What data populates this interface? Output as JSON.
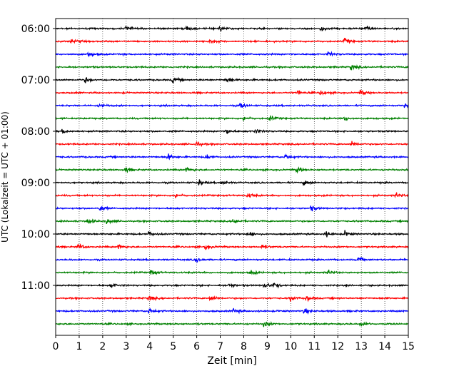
{
  "chart_data": {
    "type": "line",
    "title": "",
    "xlabel": "Zeit  [min]",
    "ylabel": "UTC (Lokalzeit = UTC + 01:00)",
    "xlim": [
      0,
      15
    ],
    "x_ticks": [
      "0",
      "1",
      "2",
      "3",
      "4",
      "5",
      "6",
      "7",
      "8",
      "9",
      "10",
      "11",
      "12",
      "13",
      "14",
      "15"
    ],
    "y_tick_labels": [
      "06:00",
      "07:00",
      "08:00",
      "09:00",
      "10:00",
      "11:00"
    ],
    "grid": "vertical dotted",
    "trace_colors": [
      "#000000",
      "#ff0000",
      "#0000ff",
      "#008000"
    ],
    "trace_interval_min": 15,
    "traces": [
      {
        "start": "06:00",
        "events": [
          3.0,
          5.6,
          7.0,
          11.3,
          13.2
        ]
      },
      {
        "start": "06:15",
        "events": [
          0.7,
          6.6,
          12.3
        ]
      },
      {
        "start": "06:30",
        "events": [
          1.4,
          11.6
        ]
      },
      {
        "start": "06:45",
        "events": [
          12.6
        ]
      },
      {
        "start": "07:00",
        "events": [
          1.3,
          5.0,
          7.3
        ]
      },
      {
        "start": "07:15",
        "events": [
          10.3,
          11.3,
          13.0
        ]
      },
      {
        "start": "07:30",
        "events": [
          1.9,
          7.9,
          14.9
        ]
      },
      {
        "start": "07:45",
        "events": [
          8.0,
          9.1,
          12.3
        ]
      },
      {
        "start": "08:00",
        "events": [
          0.3,
          7.3,
          8.5
        ]
      },
      {
        "start": "08:15",
        "events": [
          6.0,
          12.6
        ]
      },
      {
        "start": "08:30",
        "events": [
          4.8,
          6.4,
          9.8
        ]
      },
      {
        "start": "08:45",
        "events": [
          3.0,
          5.6,
          10.3
        ]
      },
      {
        "start": "09:00",
        "events": [
          6.1,
          7.1,
          10.6
        ]
      },
      {
        "start": "09:15",
        "events": [
          5.1,
          8.2,
          14.5
        ]
      },
      {
        "start": "09:30",
        "events": [
          1.9,
          10.9
        ]
      },
      {
        "start": "09:45",
        "events": [
          1.4,
          2.2,
          7.6
        ]
      },
      {
        "start": "10:00",
        "events": [
          4.0,
          8.2,
          11.5,
          12.3
        ]
      },
      {
        "start": "10:15",
        "events": [
          1.0,
          2.7,
          6.4,
          8.8
        ]
      },
      {
        "start": "10:30",
        "events": [
          6.0,
          12.9
        ]
      },
      {
        "start": "10:45",
        "events": [
          4.1,
          8.3,
          11.6
        ]
      },
      {
        "start": "11:00",
        "events": [
          2.4,
          7.4,
          8.9,
          9.3
        ]
      },
      {
        "start": "11:15",
        "events": [
          4.0,
          6.6,
          10.0,
          10.7
        ]
      },
      {
        "start": "11:30",
        "events": [
          4.0,
          7.6,
          10.6
        ]
      },
      {
        "start": "11:45",
        "events": [
          8.9,
          13.0
        ]
      }
    ]
  }
}
